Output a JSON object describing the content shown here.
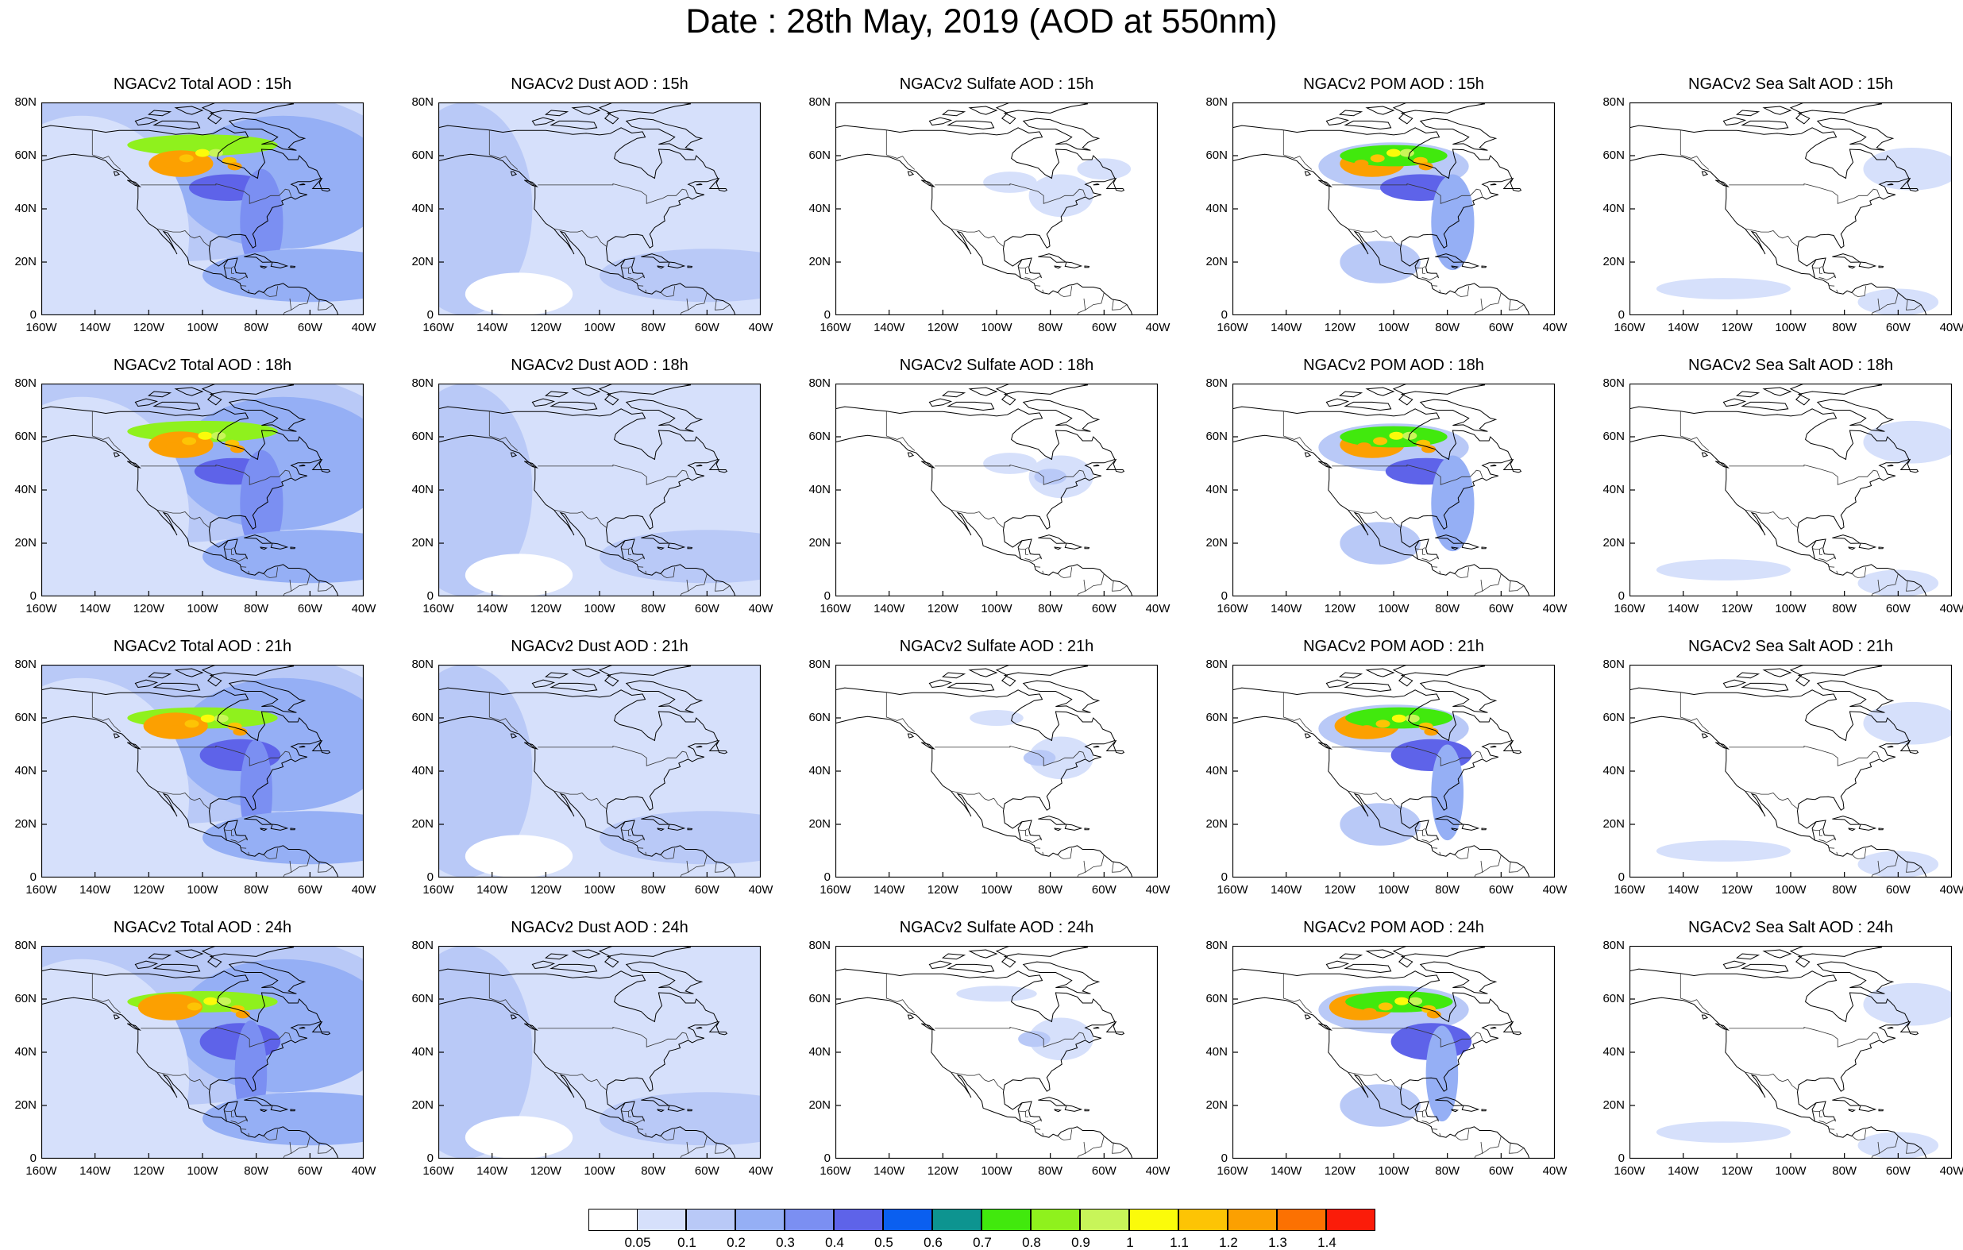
{
  "title": "Date : 28th May, 2019 (AOD at 550nm)",
  "columns": [
    {
      "species": "Total",
      "color_note": "total"
    },
    {
      "species": "Dust",
      "color_note": "dust"
    },
    {
      "species": "Sulfate",
      "color_note": "sulfate"
    },
    {
      "species": "POM",
      "color_note": "pom"
    },
    {
      "species": "Sea Salt",
      "color_note": "seasalt"
    }
  ],
  "panel_titles": [
    [
      "NGACv2 Total AOD : 15h",
      "NGACv2 Dust AOD : 15h",
      "NGACv2 Sulfate AOD : 15h",
      "NGACv2 POM AOD : 15h",
      "NGACv2 Sea Salt AOD : 15h"
    ],
    [
      "NGACv2 Total AOD : 18h",
      "NGACv2 Dust AOD : 18h",
      "NGACv2 Sulfate AOD : 18h",
      "NGACv2 POM AOD : 18h",
      "NGACv2 Sea Salt AOD : 18h"
    ],
    [
      "NGACv2 Total AOD : 21h",
      "NGACv2 Dust AOD : 21h",
      "NGACv2 Sulfate AOD : 21h",
      "NGACv2 POM AOD : 21h",
      "NGACv2 Sea Salt AOD : 21h"
    ],
    [
      "NGACv2 Total AOD : 24h",
      "NGACv2 Dust AOD : 24h",
      "NGACv2 Sulfate AOD : 24h",
      "NGACv2 POM AOD : 24h",
      "NGACv2 Sea Salt  AOD : 24h"
    ]
  ],
  "y_ticks": [
    "80N",
    "60N",
    "40N",
    "20N",
    "0"
  ],
  "x_ticks": [
    "160W",
    "140W",
    "120W",
    "100W",
    "80W",
    "60W",
    "40W"
  ],
  "map_extent": {
    "lon": [
      -160,
      -40
    ],
    "lat": [
      0,
      80
    ]
  },
  "colorbar": {
    "colors": [
      "#ffffff",
      "#d6e0fb",
      "#b9c9f7",
      "#95aff5",
      "#7b8ff2",
      "#5e63e9",
      "#0a5ff0",
      "#0d9490",
      "#41e90d",
      "#8ff11d",
      "#c8f559",
      "#fbfb0a",
      "#fdc405",
      "#fca001",
      "#fc7102",
      "#fb1c09"
    ],
    "labels": [
      "0.05",
      "0.1",
      "0.2",
      "0.3",
      "0.4",
      "0.5",
      "0.6",
      "0.7",
      "0.8",
      "0.9",
      "1",
      "1.1",
      "1.2",
      "1.3",
      "1.4"
    ]
  }
}
